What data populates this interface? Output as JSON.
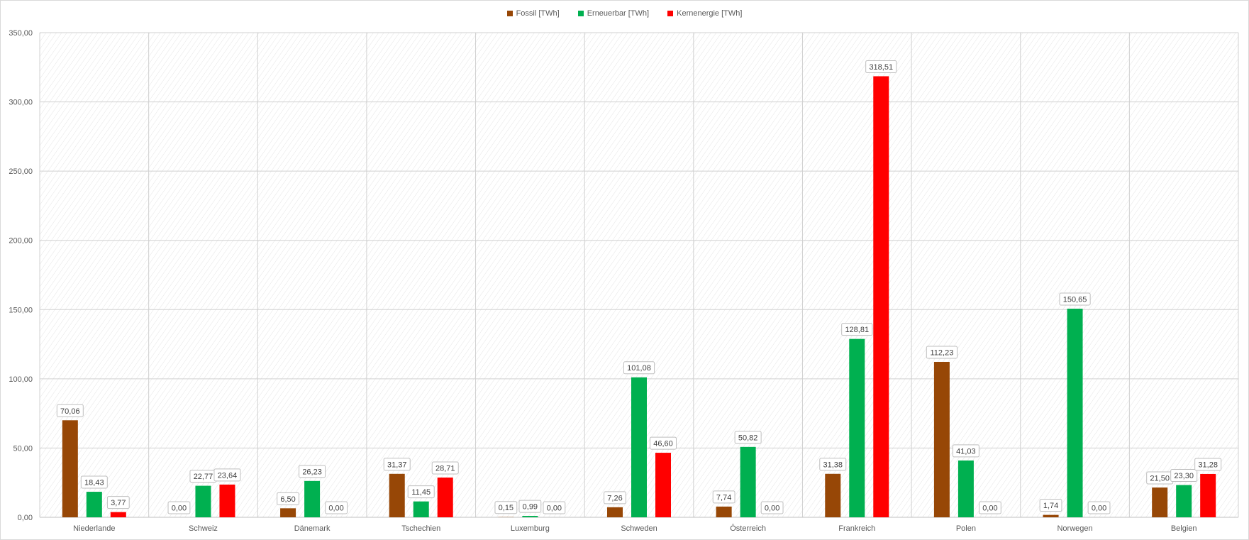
{
  "chart_data": {
    "type": "bar",
    "categories": [
      "Niederlande",
      "Schweiz",
      "Dänemark",
      "Tschechien",
      "Luxemburg",
      "Schweden",
      "Österreich",
      "Frankreich",
      "Polen",
      "Norwegen",
      "Belgien"
    ],
    "series": [
      {
        "name": "Fossil [TWh]",
        "color": "#974706",
        "values": [
          70.06,
          0.0,
          6.5,
          31.37,
          0.15,
          7.26,
          7.74,
          31.38,
          112.23,
          1.74,
          21.5
        ],
        "labels": [
          "70,06",
          "0,00",
          "6,50",
          "31,37",
          "0,15",
          "7,26",
          "7,74",
          "31,38",
          "112,23",
          "1,74",
          "21,50"
        ]
      },
      {
        "name": "Erneuerbar [TWh]",
        "color": "#00b050",
        "values": [
          18.43,
          22.77,
          26.23,
          11.45,
          0.99,
          101.08,
          50.82,
          128.81,
          41.03,
          150.65,
          23.3
        ],
        "labels": [
          "18,43",
          "22,77",
          "26,23",
          "11,45",
          "0,99",
          "101,08",
          "50,82",
          "128,81",
          "41,03",
          "150,65",
          "23,30"
        ]
      },
      {
        "name": "Kernenergie [TWh]",
        "color": "#ff0000",
        "values": [
          3.77,
          23.64,
          0.0,
          28.71,
          0.0,
          46.6,
          0.0,
          318.51,
          0.0,
          0.0,
          31.28
        ],
        "labels": [
          "3,77",
          "23,64",
          "0,00",
          "28,71",
          "0,00",
          "46,60",
          "0,00",
          "318,51",
          "0,00",
          "0,00",
          "31,28"
        ]
      }
    ],
    "y_ticks": [
      "0,00",
      "50,00",
      "100,00",
      "150,00",
      "200,00",
      "250,00",
      "300,00",
      "350,00"
    ],
    "ylim": [
      0,
      350
    ],
    "grid": true,
    "legend_position": "top-center"
  }
}
